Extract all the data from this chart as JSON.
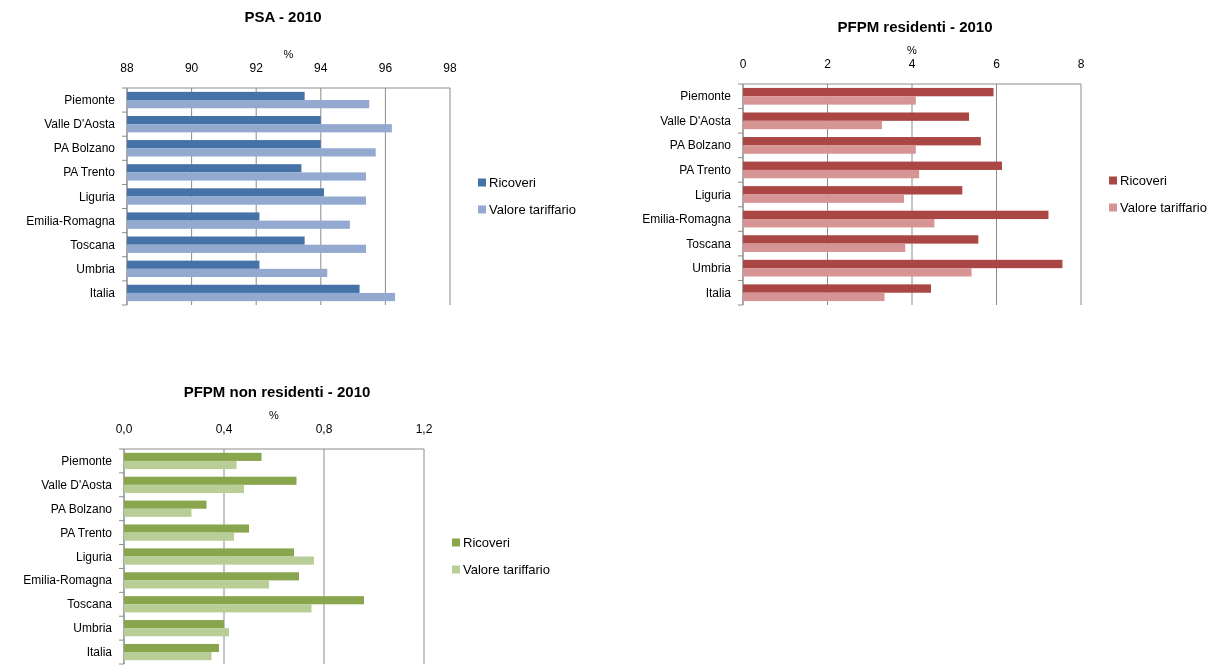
{
  "chart_data": [
    {
      "type": "bar",
      "orientation": "horizontal",
      "title": "PSA - 2010",
      "xlabel": "%",
      "categories": [
        "Piemonte",
        "Valle D'Aosta",
        "PA Bolzano",
        "PA Trento",
        "Liguria",
        "Emilia-Romagna",
        "Toscana",
        "Umbria",
        "Italia"
      ],
      "series": [
        {
          "name": "Ricoveri",
          "color": "#4572a7",
          "values": [
            93.5,
            94.0,
            94.0,
            93.4,
            94.1,
            92.1,
            93.5,
            92.1,
            95.2
          ]
        },
        {
          "name": "Valore tariffario",
          "color": "#93a9cf",
          "values": [
            95.5,
            96.2,
            95.7,
            95.4,
            95.4,
            94.9,
            95.4,
            94.2,
            96.3
          ]
        }
      ],
      "xlim": [
        88,
        98
      ],
      "xticks": [
        88,
        90,
        92,
        94,
        96,
        98
      ],
      "grid": "x",
      "legend": "right"
    },
    {
      "type": "bar",
      "orientation": "horizontal",
      "title": "PFPM residenti - 2010",
      "xlabel": "%",
      "categories": [
        "Piemonte",
        "Valle D'Aosta",
        "PA Bolzano",
        "PA Trento",
        "Liguria",
        "Emilia-Romagna",
        "Toscana",
        "Umbria",
        "Italia"
      ],
      "series": [
        {
          "name": "Ricoveri",
          "color": "#aa4643",
          "values": [
            5.93,
            5.35,
            5.63,
            6.13,
            5.19,
            7.23,
            5.57,
            7.56,
            4.45
          ]
        },
        {
          "name": "Valore tariffario",
          "color": "#d69594",
          "values": [
            4.09,
            3.29,
            4.09,
            4.17,
            3.81,
            4.53,
            3.84,
            5.41,
            3.35
          ]
        }
      ],
      "xlim": [
        0,
        8
      ],
      "xticks": [
        0,
        2,
        4,
        6,
        8
      ],
      "grid": "x",
      "legend": "right"
    },
    {
      "type": "bar",
      "orientation": "horizontal",
      "title": "PFPM non residenti - 2010",
      "xlabel": "%",
      "categories": [
        "Piemonte",
        "Valle D'Aosta",
        "PA Bolzano",
        "PA Trento",
        "Liguria",
        "Emilia-Romagna",
        "Toscana",
        "Umbria",
        "Italia"
      ],
      "series": [
        {
          "name": "Ricoveri",
          "color": "#89a54e",
          "values": [
            0.55,
            0.69,
            0.33,
            0.5,
            0.68,
            0.7,
            0.96,
            0.4,
            0.38
          ]
        },
        {
          "name": "Valore tariffario",
          "color": "#b9cd96",
          "values": [
            0.45,
            0.48,
            0.27,
            0.44,
            0.76,
            0.58,
            0.75,
            0.42,
            0.35
          ]
        }
      ],
      "xlim": [
        0,
        1.2
      ],
      "xticks": [
        {
          "value": 0,
          "label": "0,0"
        },
        {
          "value": 0.4,
          "label": "0,4"
        },
        {
          "value": 0.8,
          "label": "0,8"
        },
        {
          "value": 1.2,
          "label": "1,2"
        }
      ],
      "grid": "x",
      "legend": "right"
    }
  ]
}
